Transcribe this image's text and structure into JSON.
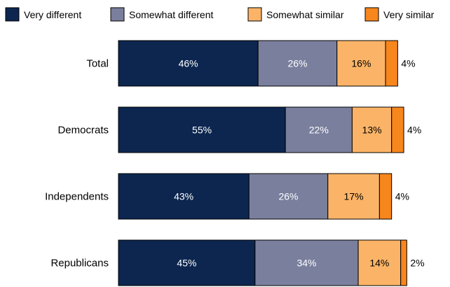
{
  "chart_data": {
    "type": "bar",
    "orientation": "horizontal",
    "stacked": true,
    "categories": [
      "Total",
      "Democrats",
      "Independents",
      "Republicans"
    ],
    "series": [
      {
        "name": "Very different",
        "values": [
          46,
          55,
          43,
          45
        ],
        "color": "#0c2650",
        "label_color": "#ffffff",
        "label_position": "inside"
      },
      {
        "name": "Somewhat different",
        "values": [
          26,
          22,
          26,
          34
        ],
        "color": "#7a7f9d",
        "label_color": "#ffffff",
        "label_position": "inside"
      },
      {
        "name": "Somewhat similar",
        "values": [
          16,
          13,
          17,
          14
        ],
        "color": "#fbb467",
        "label_color": "#000000",
        "label_position": "inside"
      },
      {
        "name": "Very similar",
        "values": [
          4,
          4,
          4,
          2
        ],
        "color": "#f7861c",
        "label_color": "#000000",
        "label_position": "outside"
      }
    ],
    "value_suffix": "%",
    "xlim": [
      0,
      100
    ],
    "legend_position": "top",
    "grid": false,
    "title": "",
    "xlabel": "",
    "ylabel": ""
  }
}
